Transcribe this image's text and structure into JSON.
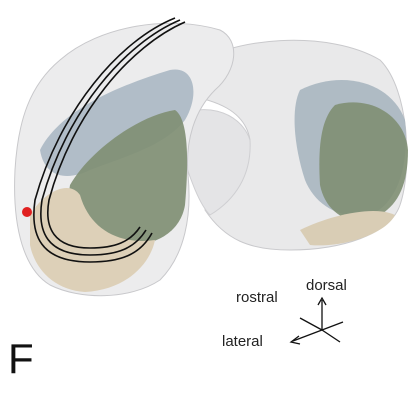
{
  "panel_label": "F",
  "orientation": {
    "dorsal": "dorsal",
    "rostral": "rostral",
    "lateral": "lateral"
  }
}
